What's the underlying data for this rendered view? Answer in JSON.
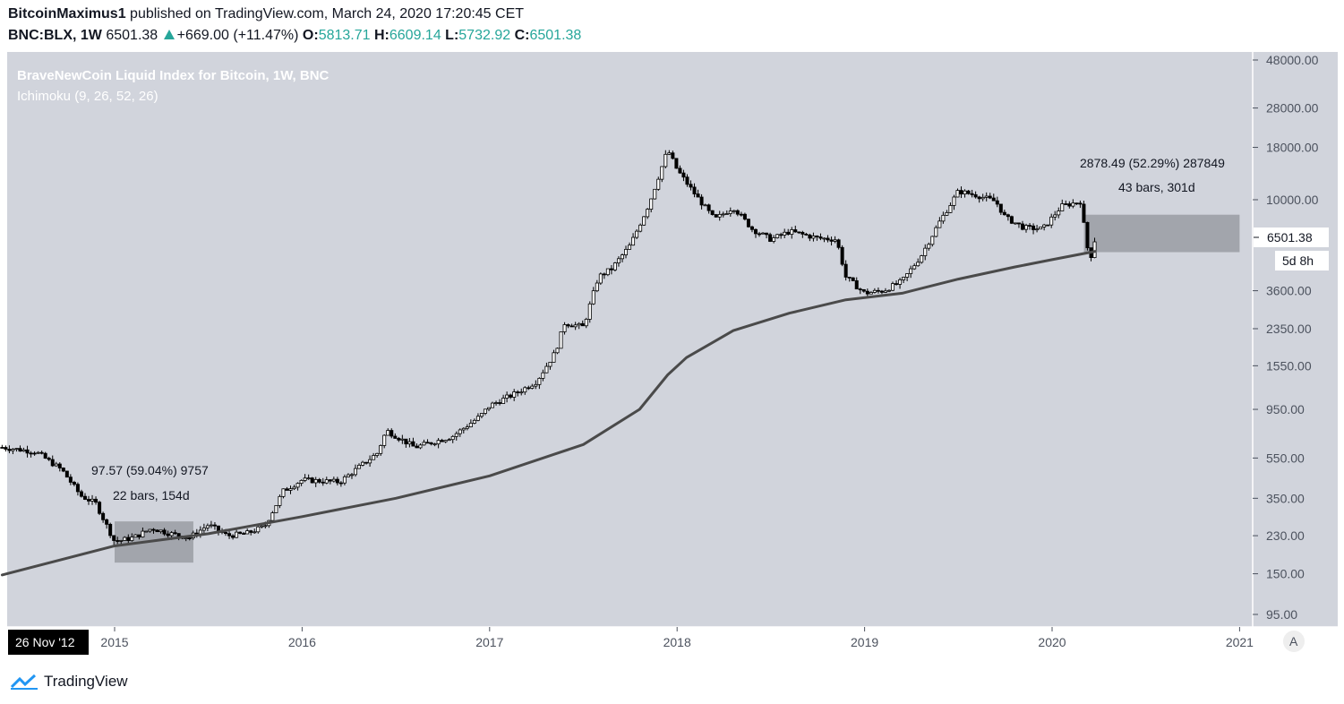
{
  "header": {
    "user": "BitcoinMaximus1",
    "published": "published on TradingView.com, March 24, 2020 17:20:45 CET",
    "symbol": "BNC:BLX, 1W",
    "last": "6501.38",
    "change": "+669.00 (+11.47%)",
    "o_label": "O:",
    "o_value": "5813.71",
    "h_label": "H:",
    "h_value": "6609.14",
    "l_label": "L:",
    "l_value": "5732.92",
    "c_label": "C:",
    "c_value": "6501.38"
  },
  "legend": {
    "title": "BraveNewCoin Liquid Index for Bitcoin, 1W, BNC",
    "indicator": "Ichimoku (9, 26, 52, 26)"
  },
  "annotations": {
    "box1_line1": "97.57 (59.04%) 9757",
    "box1_line2": "22 bars, 154d",
    "box2_line1": "2878.49 (52.29%) 287849",
    "box2_line2": "43 bars, 301d"
  },
  "price_tag": "6501.38",
  "countdown": "5d 8h",
  "date_tag": "26 Nov '12",
  "auto_button": "A",
  "footer_brand": "TradingView",
  "colors": {
    "bg": "#d1d4dc",
    "candle": "#000000",
    "baseline": "#4a4a4a",
    "box": "#9a9ca3",
    "axis_text": "#4c525e",
    "up": "#26a69a"
  },
  "chart_data": {
    "type": "candlestick",
    "title": "BraveNewCoin Liquid Index for Bitcoin, 1W, BNC",
    "scale": "log",
    "y_ticks": [
      48000,
      28000,
      18000,
      10000,
      3600,
      2350,
      1550,
      950,
      550,
      350,
      230,
      150,
      95
    ],
    "y_tick_labels": [
      "48000.00",
      "28000.00",
      "18000.00",
      "10000.00",
      "3600.00",
      "2350.00",
      "1550.00",
      "950.00",
      "550.00",
      "350.00",
      "230.00",
      "150.00",
      "95.00"
    ],
    "x_ticks": [
      2015,
      2016,
      2017,
      2018,
      2019,
      2020,
      2021
    ],
    "x_tick_labels": [
      "2015",
      "2016",
      "2017",
      "2018",
      "2019",
      "2020",
      "2021"
    ],
    "close_path": [
      [
        2014.4,
        620
      ],
      [
        2014.58,
        590
      ],
      [
        2014.72,
        480
      ],
      [
        2014.82,
        360
      ],
      [
        2014.9,
        330
      ],
      [
        2015.0,
        215
      ],
      [
        2015.1,
        225
      ],
      [
        2015.2,
        250
      ],
      [
        2015.3,
        235
      ],
      [
        2015.4,
        225
      ],
      [
        2015.5,
        260
      ],
      [
        2015.6,
        230
      ],
      [
        2015.7,
        235
      ],
      [
        2015.8,
        255
      ],
      [
        2015.9,
        380
      ],
      [
        2016.0,
        430
      ],
      [
        2016.2,
        420
      ],
      [
        2016.4,
        580
      ],
      [
        2016.45,
        750
      ],
      [
        2016.6,
        620
      ],
      [
        2016.8,
        700
      ],
      [
        2016.95,
        880
      ],
      [
        2017.0,
        990
      ],
      [
        2017.15,
        1150
      ],
      [
        2017.25,
        1300
      ],
      [
        2017.35,
        1800
      ],
      [
        2017.4,
        2500
      ],
      [
        2017.5,
        2400
      ],
      [
        2017.58,
        4200
      ],
      [
        2017.65,
        4600
      ],
      [
        2017.75,
        6000
      ],
      [
        2017.85,
        9500
      ],
      [
        2017.95,
        17500
      ],
      [
        2018.0,
        14000
      ],
      [
        2018.1,
        10500
      ],
      [
        2018.2,
        8000
      ],
      [
        2018.3,
        9200
      ],
      [
        2018.4,
        7200
      ],
      [
        2018.5,
        6400
      ],
      [
        2018.6,
        7000
      ],
      [
        2018.75,
        6500
      ],
      [
        2018.85,
        6400
      ],
      [
        2018.9,
        4200
      ],
      [
        2019.0,
        3500
      ],
      [
        2019.1,
        3600
      ],
      [
        2019.2,
        4000
      ],
      [
        2019.3,
        5300
      ],
      [
        2019.4,
        7800
      ],
      [
        2019.5,
        11000
      ],
      [
        2019.6,
        10500
      ],
      [
        2019.7,
        9800
      ],
      [
        2019.75,
        8200
      ],
      [
        2019.85,
        7300
      ],
      [
        2019.95,
        7200
      ],
      [
        2020.05,
        9300
      ],
      [
        2020.15,
        9800
      ],
      [
        2020.2,
        5000
      ],
      [
        2020.23,
        6501
      ]
    ],
    "baseline_path": [
      [
        2014.4,
        148
      ],
      [
        2015.0,
        205
      ],
      [
        2015.5,
        235
      ],
      [
        2016.0,
        285
      ],
      [
        2016.5,
        350
      ],
      [
        2017.0,
        450
      ],
      [
        2017.5,
        640
      ],
      [
        2017.8,
        950
      ],
      [
        2017.95,
        1400
      ],
      [
        2018.05,
        1700
      ],
      [
        2018.3,
        2300
      ],
      [
        2018.6,
        2800
      ],
      [
        2018.9,
        3250
      ],
      [
        2019.2,
        3500
      ],
      [
        2019.5,
        4100
      ],
      [
        2019.8,
        4700
      ],
      [
        2020.0,
        5100
      ],
      [
        2020.23,
        5600
      ]
    ],
    "range_boxes": [
      {
        "x_start": 2015.0,
        "x_end": 2015.42,
        "y_low": 170,
        "y_high": 270,
        "label_change": "97.57 (59.04%) 9757",
        "label_bars": "22 bars, 154d"
      },
      {
        "x_start": 2020.17,
        "x_end": 2021.0,
        "y_low": 5550,
        "y_high": 8450,
        "label_change": "2878.49 (52.29%) 287849",
        "label_bars": "43 bars, 301d"
      }
    ],
    "last_price": 6501.38
  }
}
